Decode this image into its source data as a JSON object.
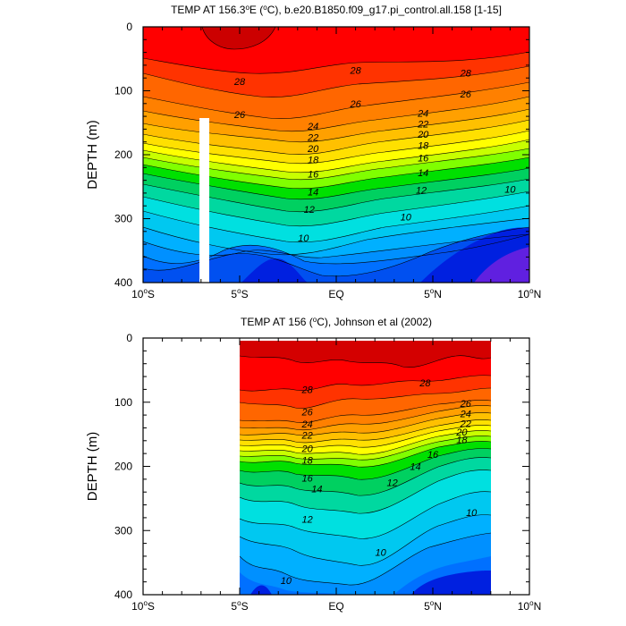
{
  "chart_data": [
    {
      "type": "contour",
      "title": "TEMP AT 156.3°E (°C), b.e20.B1850.f09_g17.pi_control.all.158 [1-15]",
      "title_parts": {
        "prefix": "TEMP AT 156.3",
        "deg": "o",
        "mid": "E (",
        "deg2": "o",
        "suffix": "C), b.e20.B1850.f09_g17.pi_control.all.158 [1-15]"
      },
      "xlabel": "",
      "ylabel": "DEPTH (m)",
      "xlim": [
        -10,
        10
      ],
      "ylim": [
        400,
        0
      ],
      "x_ticks": [
        -10,
        -5,
        0,
        5,
        10
      ],
      "x_tick_labels": [
        "10°S",
        "5°S",
        "EQ",
        "5°N",
        "10°N"
      ],
      "y_ticks": [
        0,
        100,
        200,
        300,
        400
      ],
      "y_tick_labels": [
        "0",
        "100",
        "200",
        "300",
        "400"
      ],
      "data_x_range": [
        -10,
        10
      ],
      "masked_band": {
        "x": [
          -7.1,
          -6.6
        ],
        "depth_from": 145,
        "depth_to": 400
      },
      "contour_levels": [
        9,
        10,
        11,
        12,
        13,
        14,
        15,
        16,
        17,
        18,
        19,
        20,
        21,
        22,
        23,
        24,
        25,
        26,
        27,
        28,
        29
      ],
      "contour_labels": [
        {
          "text": "28",
          "x": -5.0,
          "d": 85
        },
        {
          "text": "28",
          "x": 1.0,
          "d": 68
        },
        {
          "text": "28",
          "x": 6.7,
          "d": 72
        },
        {
          "text": "26",
          "x": -5.0,
          "d": 137
        },
        {
          "text": "26",
          "x": 1.0,
          "d": 120
        },
        {
          "text": "26",
          "x": 6.7,
          "d": 105
        },
        {
          "text": "24",
          "x": -1.2,
          "d": 155
        },
        {
          "text": "24",
          "x": 4.5,
          "d": 135
        },
        {
          "text": "22",
          "x": -1.2,
          "d": 173
        },
        {
          "text": "22",
          "x": 4.5,
          "d": 152
        },
        {
          "text": "20",
          "x": -1.2,
          "d": 190
        },
        {
          "text": "20",
          "x": 4.5,
          "d": 168
        },
        {
          "text": "18",
          "x": -1.2,
          "d": 208
        },
        {
          "text": "18",
          "x": 4.5,
          "d": 185
        },
        {
          "text": "16",
          "x": -1.2,
          "d": 230
        },
        {
          "text": "16",
          "x": 4.5,
          "d": 205
        },
        {
          "text": "14",
          "x": -1.2,
          "d": 258
        },
        {
          "text": "14",
          "x": 4.5,
          "d": 228
        },
        {
          "text": "12",
          "x": -1.4,
          "d": 285
        },
        {
          "text": "12",
          "x": 4.4,
          "d": 255
        },
        {
          "text": "10",
          "x": -1.7,
          "d": 330
        },
        {
          "text": "10",
          "x": 3.6,
          "d": 297
        },
        {
          "text": "10",
          "x": 9.0,
          "d": 254
        }
      ]
    },
    {
      "type": "contour",
      "title": "TEMP AT 156 (°C), Johnson et al (2002)",
      "title_parts": {
        "prefix": "TEMP AT 156 (",
        "deg": "o",
        "suffix": "C), Johnson et al (2002)"
      },
      "xlabel": "",
      "ylabel": "DEPTH (m)",
      "xlim": [
        -10,
        10
      ],
      "ylim": [
        400,
        0
      ],
      "x_ticks": [
        -10,
        -5,
        0,
        5,
        10
      ],
      "x_tick_labels": [
        "10°S",
        "5°S",
        "EQ",
        "5°N",
        "10°N"
      ],
      "y_ticks": [
        0,
        100,
        200,
        300,
        400
      ],
      "y_tick_labels": [
        "0",
        "100",
        "200",
        "300",
        "400"
      ],
      "data_x_range": [
        -5,
        8
      ],
      "data_depth_top": 5,
      "contour_levels": [
        9,
        10,
        11,
        12,
        13,
        14,
        15,
        16,
        17,
        18,
        19,
        20,
        21,
        22,
        23,
        24,
        25,
        26,
        27,
        28,
        29
      ],
      "contour_labels": [
        {
          "text": "28",
          "x": -1.5,
          "d": 80
        },
        {
          "text": "28",
          "x": 4.6,
          "d": 70
        },
        {
          "text": "26",
          "x": -1.5,
          "d": 115
        },
        {
          "text": "26",
          "x": 6.7,
          "d": 102
        },
        {
          "text": "24",
          "x": -1.5,
          "d": 134
        },
        {
          "text": "24",
          "x": 6.7,
          "d": 118
        },
        {
          "text": "22",
          "x": -1.5,
          "d": 151
        },
        {
          "text": "22",
          "x": 6.7,
          "d": 133
        },
        {
          "text": "20",
          "x": -1.5,
          "d": 172
        },
        {
          "text": "20",
          "x": 6.5,
          "d": 146
        },
        {
          "text": "18",
          "x": -1.5,
          "d": 190
        },
        {
          "text": "18",
          "x": 6.5,
          "d": 158
        },
        {
          "text": "16",
          "x": -1.5,
          "d": 218
        },
        {
          "text": "16",
          "x": 5.0,
          "d": 181
        },
        {
          "text": "14",
          "x": -1.0,
          "d": 235
        },
        {
          "text": "14",
          "x": 4.1,
          "d": 200
        },
        {
          "text": "12",
          "x": -1.5,
          "d": 282
        },
        {
          "text": "12",
          "x": 2.9,
          "d": 225
        },
        {
          "text": "10",
          "x": -2.6,
          "d": 378
        },
        {
          "text": "10",
          "x": 2.3,
          "d": 334
        },
        {
          "text": "10",
          "x": 7.0,
          "d": 272
        }
      ]
    }
  ]
}
